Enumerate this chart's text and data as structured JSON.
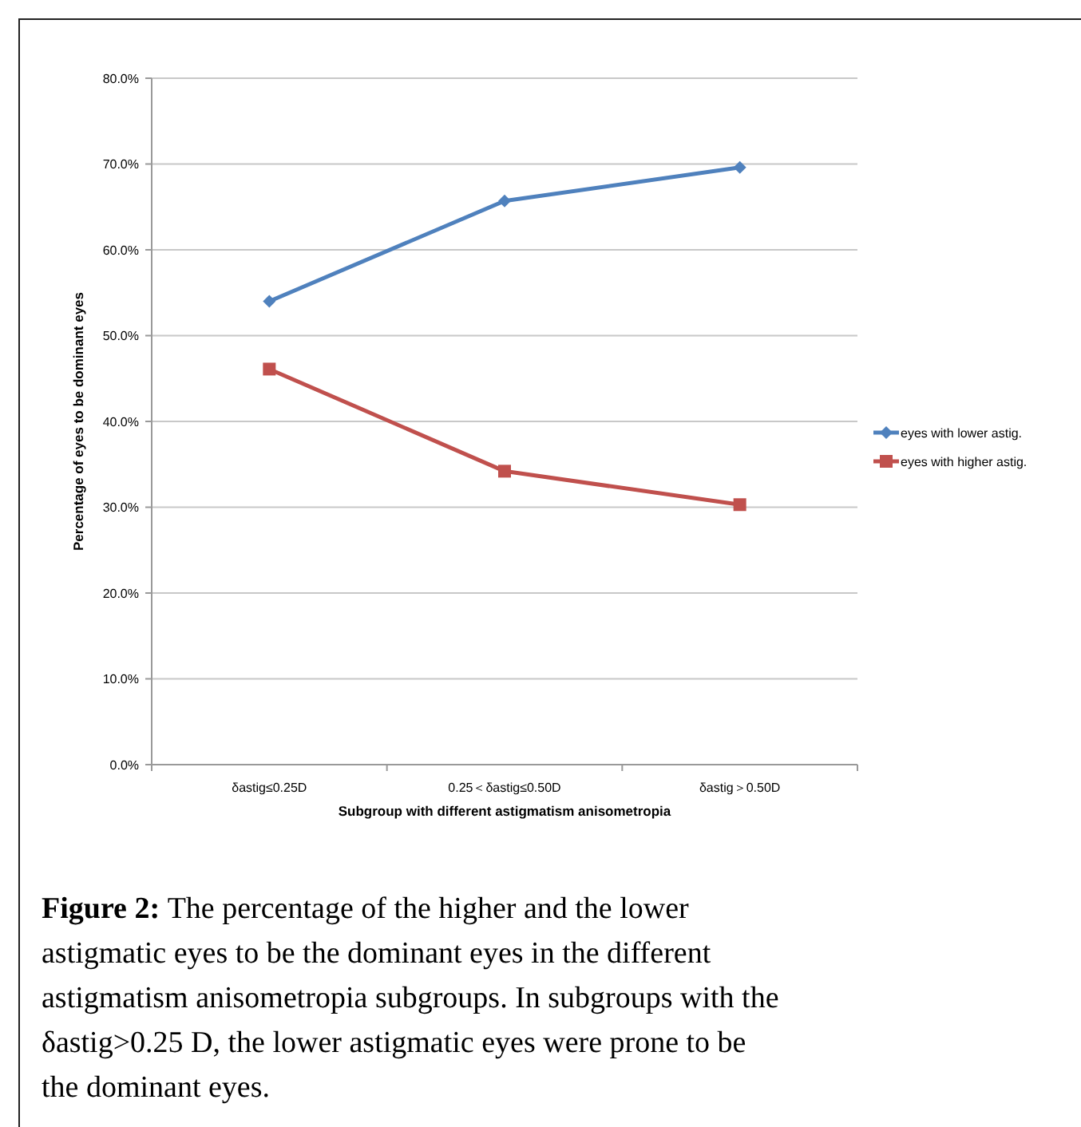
{
  "chart_data": {
    "type": "line",
    "xlabel": "Subgroup with different astigmatism anisometropia",
    "ylabel": "Percentage of eyes to be dominant eyes",
    "categories": [
      "δastig≤0.25D",
      "0.25＜δastig≤0.50D",
      "δastig＞0.50D"
    ],
    "series": [
      {
        "name": "eyes with lower astig.",
        "color": "#4f81bd",
        "values": [
          54.0,
          65.7,
          69.6
        ],
        "marker": "diamond"
      },
      {
        "name": "eyes with higher astig.",
        "color": "#c0504d",
        "values": [
          46.1,
          34.2,
          30.3
        ],
        "marker": "square"
      }
    ],
    "ylim": [
      0,
      80
    ],
    "yticks": [
      {
        "value": 0,
        "label": "0.0%"
      },
      {
        "value": 10,
        "label": "10.0%"
      },
      {
        "value": 20,
        "label": "20.0%"
      },
      {
        "value": 30,
        "label": "30.0%"
      },
      {
        "value": 40,
        "label": "40.0%"
      },
      {
        "value": 50,
        "label": "50.0%"
      },
      {
        "value": 60,
        "label": "60.0%"
      },
      {
        "value": 70,
        "label": "70.0%"
      },
      {
        "value": 80,
        "label": "80.0%"
      }
    ],
    "grid": "y",
    "legend": "right",
    "line_style": "solid",
    "annotations": [
      "Figure 2:",
      "The percentage of the higher and the lower astigmatic eyes to be the dominant eyes in the different astigmatism anisometropia subgroups. In subgroups with the δastig>0.25 D, the lower astigmatic eyes were prone to be the dominant eyes."
    ]
  }
}
